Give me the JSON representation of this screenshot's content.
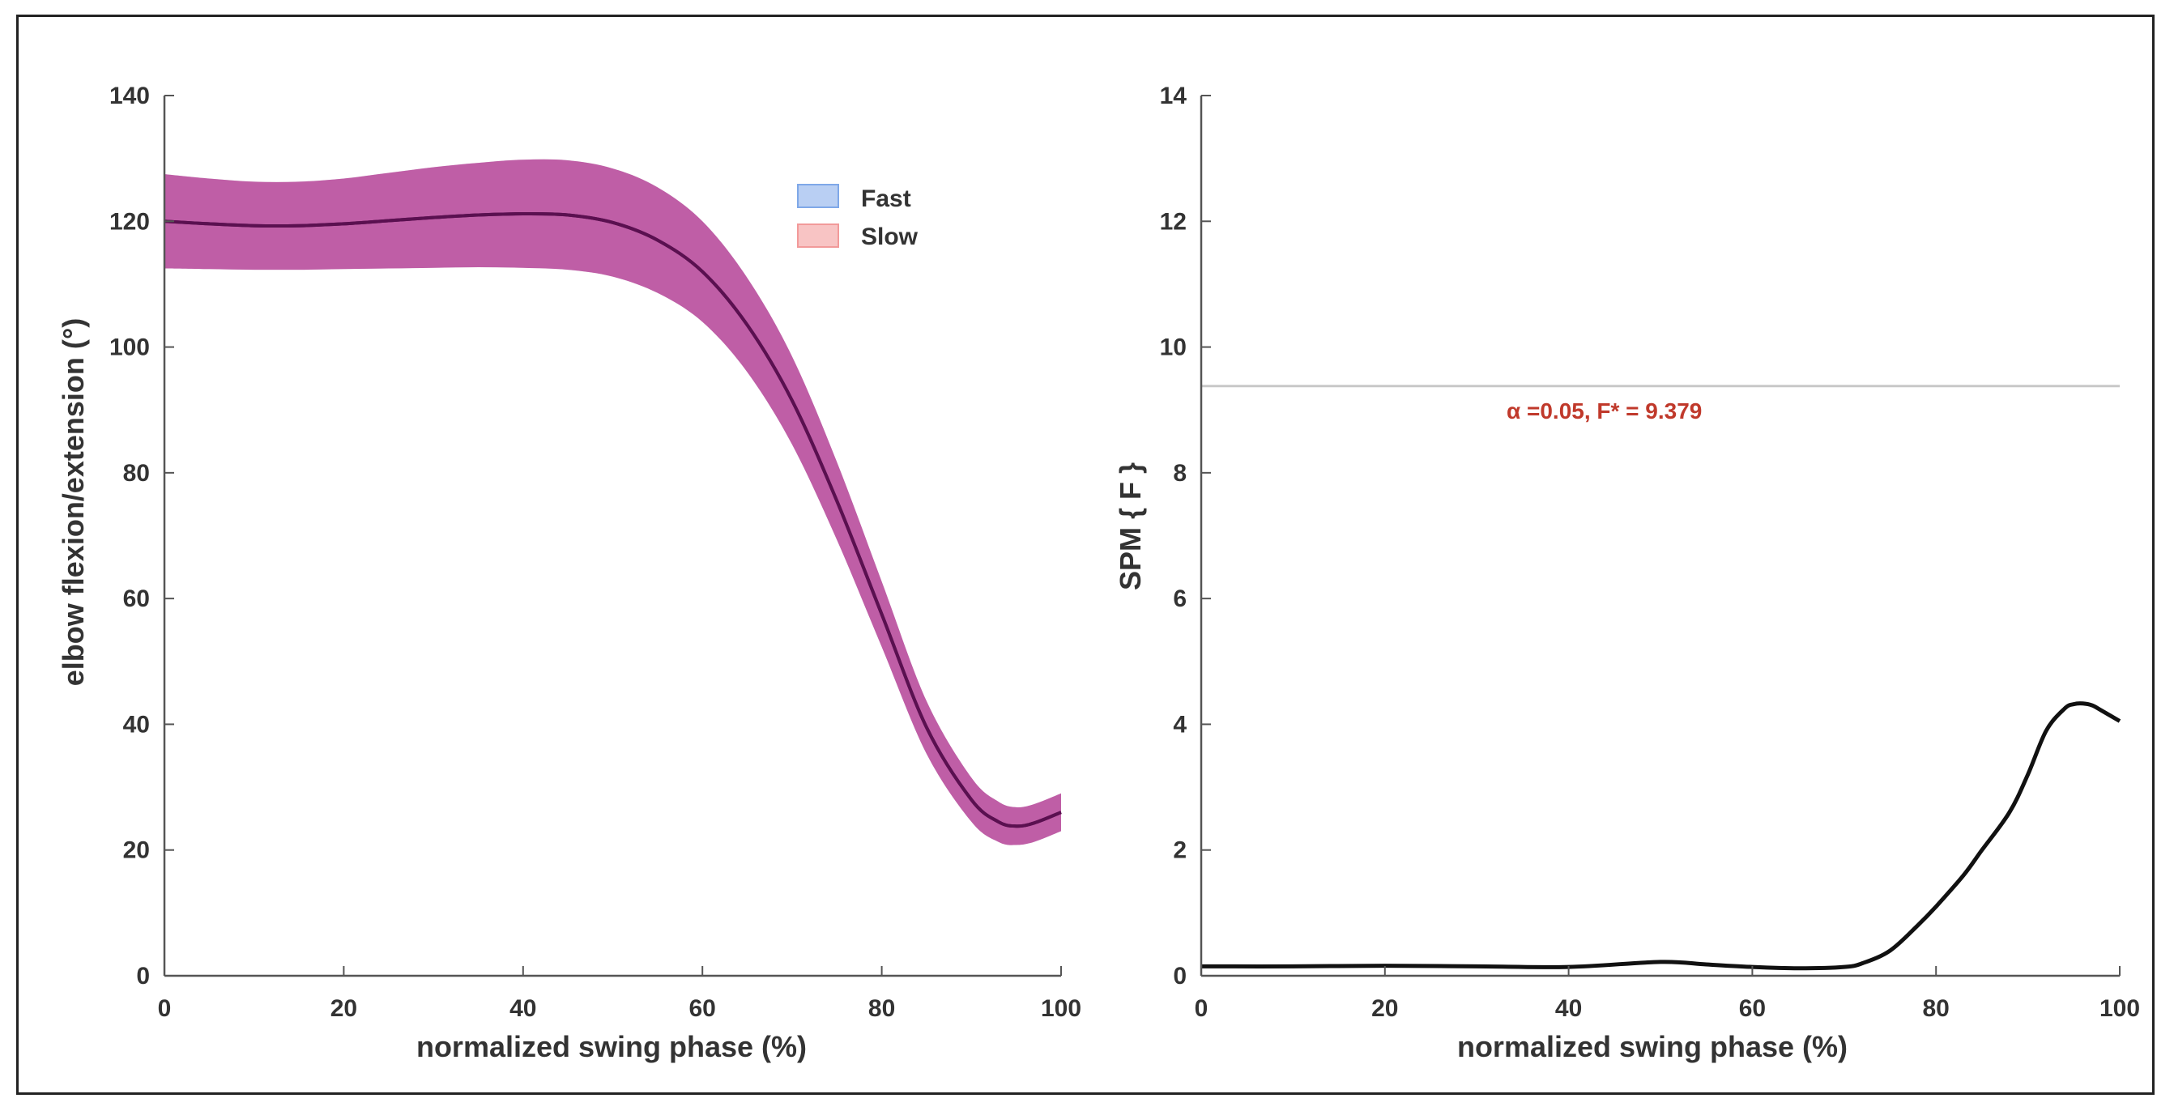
{
  "chart_data": [
    {
      "type": "line",
      "xlabel": "normalized swing phase (%)",
      "ylabel": "elbow flexion/extension (°)",
      "xlim": [
        0,
        100
      ],
      "ylim": [
        0,
        140
      ],
      "xticks": [
        0,
        20,
        40,
        60,
        80,
        100
      ],
      "yticks": [
        0,
        20,
        40,
        60,
        80,
        100,
        120,
        140
      ],
      "legend": {
        "position": "top-right",
        "entries": [
          "Fast",
          "Slow"
        ]
      },
      "x": [
        0,
        5,
        10,
        15,
        20,
        25,
        30,
        35,
        40,
        45,
        50,
        55,
        60,
        65,
        70,
        75,
        80,
        85,
        90,
        93,
        95,
        97,
        100
      ],
      "series": [
        {
          "name": "Fast",
          "color": "#7fa8e8",
          "mean": [
            120,
            119.6,
            119.3,
            119.3,
            119.6,
            120.1,
            120.6,
            121.0,
            121.2,
            121.0,
            119.8,
            117.0,
            112.0,
            103.5,
            91.5,
            75.5,
            57.5,
            39.5,
            28.0,
            24.5,
            23.8,
            24.3,
            26.0
          ],
          "sd": [
            7.5,
            7.2,
            7.0,
            7.0,
            7.2,
            7.6,
            8.0,
            8.3,
            8.6,
            8.7,
            8.6,
            8.4,
            8.0,
            7.5,
            7.0,
            6.2,
            5.2,
            4.2,
            3.5,
            3.2,
            3.0,
            3.0,
            3.0
          ]
        },
        {
          "name": "Slow",
          "color": "#f29a9a",
          "mean": [
            120,
            119.6,
            119.3,
            119.3,
            119.6,
            120.1,
            120.6,
            121.0,
            121.2,
            121.0,
            119.8,
            117.0,
            112.0,
            103.5,
            91.5,
            75.5,
            57.5,
            39.5,
            28.0,
            24.5,
            23.8,
            24.3,
            26.0
          ],
          "sd": [
            7.5,
            7.2,
            7.0,
            7.0,
            7.2,
            7.6,
            8.0,
            8.3,
            8.6,
            8.7,
            8.6,
            8.4,
            8.0,
            7.5,
            7.0,
            6.2,
            5.2,
            4.2,
            3.5,
            3.2,
            3.0,
            3.0,
            3.0
          ]
        }
      ],
      "overlap_band_color": "#b8449a",
      "mean_line_color": "#5a1050",
      "grid": false
    },
    {
      "type": "line",
      "xlabel": "normalized swing phase (%)",
      "ylabel": "SPM { F }",
      "xlim": [
        0,
        100
      ],
      "ylim": [
        0,
        14
      ],
      "xticks": [
        0,
        20,
        40,
        60,
        80,
        100
      ],
      "yticks": [
        0,
        2,
        4,
        6,
        8,
        10,
        12,
        14
      ],
      "x": [
        0,
        10,
        20,
        30,
        40,
        50,
        55,
        60,
        65,
        70,
        72,
        75,
        78,
        80,
        83,
        85,
        88,
        90,
        92,
        94,
        95,
        96,
        97,
        98,
        100
      ],
      "values": [
        0.15,
        0.15,
        0.16,
        0.15,
        0.14,
        0.22,
        0.18,
        0.14,
        0.12,
        0.14,
        0.2,
        0.4,
        0.8,
        1.1,
        1.6,
        2.0,
        2.6,
        3.2,
        3.9,
        4.25,
        4.32,
        4.33,
        4.3,
        4.22,
        4.05
      ],
      "line_color": "#111111",
      "threshold": {
        "value": 9.379,
        "color": "#c8c8c8"
      },
      "annotation": {
        "text": "α =0.05,    F* = 9.379",
        "color": "#c0392b"
      },
      "grid": false
    }
  ]
}
